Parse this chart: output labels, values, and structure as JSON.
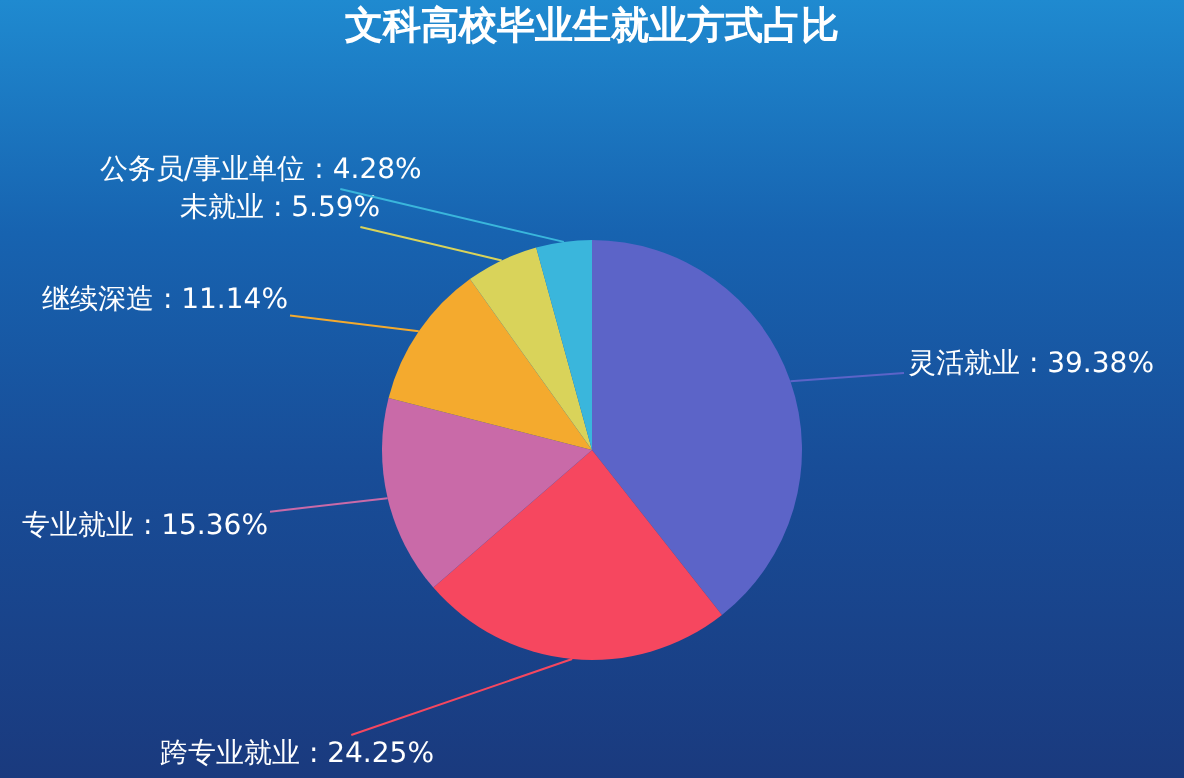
{
  "chart_data": {
    "type": "pie",
    "title": "文科高校毕业生就业方式占比",
    "categories": [
      "灵活就业",
      "跨专业就业",
      "专业就业",
      "继续深造",
      "未就业",
      "公务员/事业单位"
    ],
    "values": [
      39.38,
      24.25,
      15.36,
      11.14,
      5.59,
      4.28
    ],
    "value_labels": [
      ": 39.38%",
      ": 24.25%",
      ": 15.36%",
      ": 11.14%",
      ": 5.59%",
      ": 4.28%"
    ],
    "colors": [
      "#5c64c8",
      "#f6475f",
      "#c96aa8",
      "#f4aa2e",
      "#d9d35a",
      "#3ab6dc"
    ],
    "legend": false
  }
}
